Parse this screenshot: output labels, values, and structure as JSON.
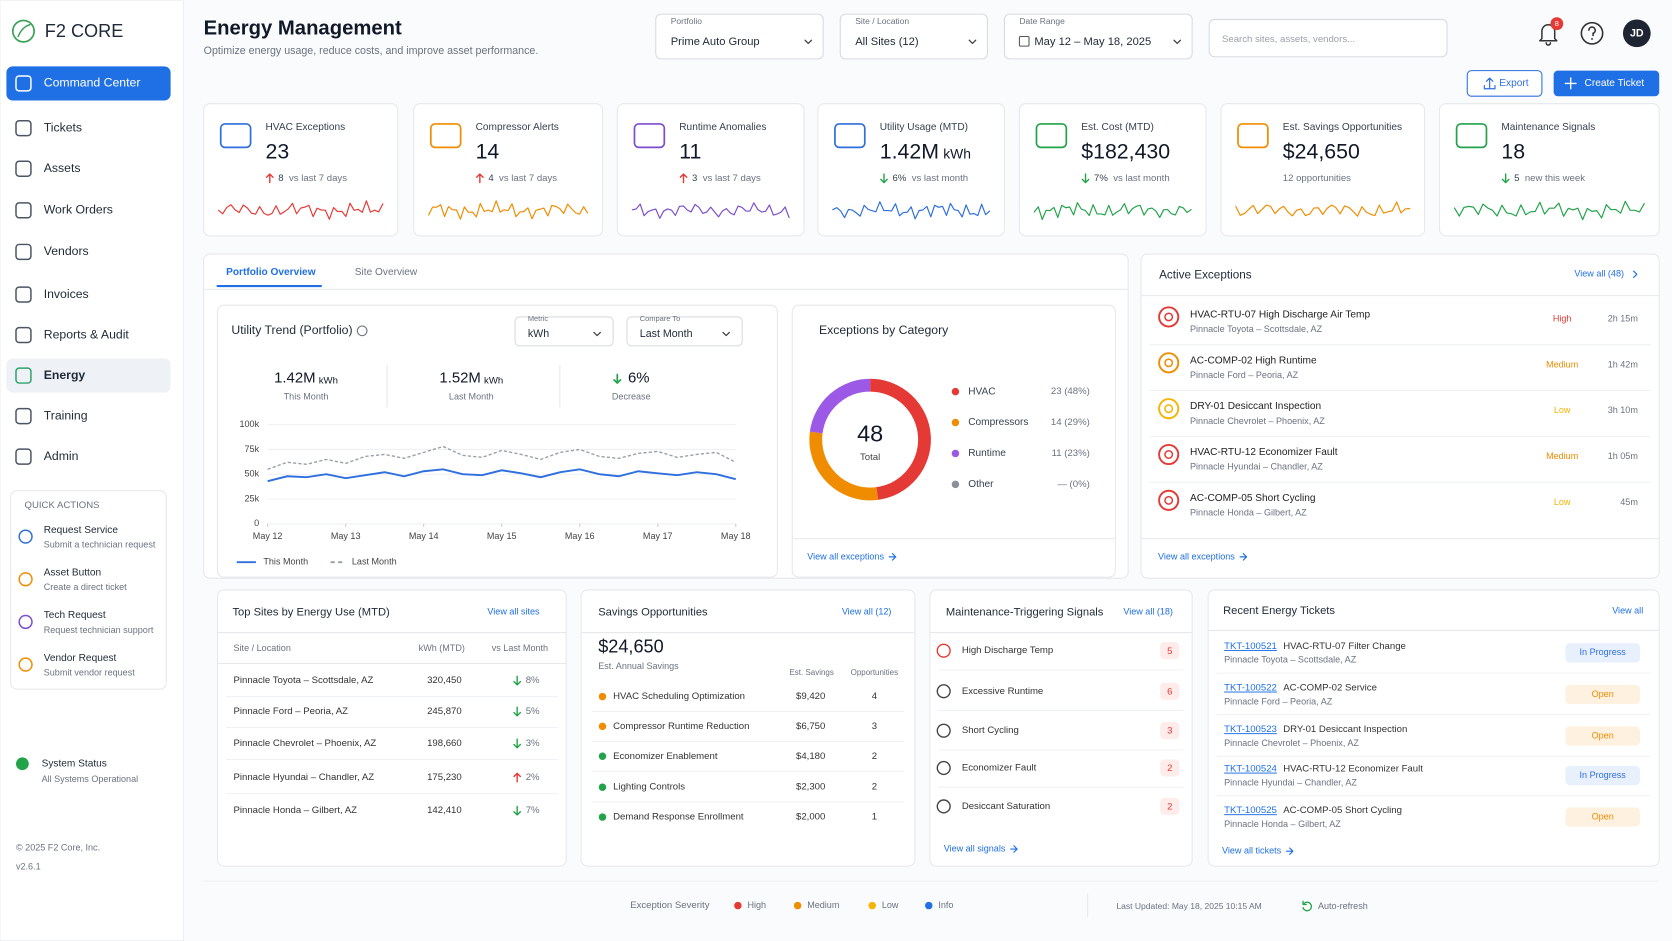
{
  "brand": {
    "name": "F2 CORE"
  },
  "nav": [
    {
      "label": "Command Center",
      "state": "active"
    },
    {
      "label": "Tickets"
    },
    {
      "label": "Assets"
    },
    {
      "label": "Work Orders"
    },
    {
      "label": "Vendors"
    },
    {
      "label": "Invoices"
    },
    {
      "label": "Reports & Audit"
    },
    {
      "label": "Energy",
      "state": "current"
    },
    {
      "label": "Training"
    },
    {
      "label": "Admin"
    }
  ],
  "quick_actions": {
    "title": "QUICK ACTIONS",
    "items": [
      {
        "title": "Request Service",
        "subtitle": "Submit a technician request",
        "color": "#2f6fde"
      },
      {
        "title": "Asset Button",
        "subtitle": "Create a direct ticket",
        "color": "#f08c00"
      },
      {
        "title": "Tech Request",
        "subtitle": "Request technician support",
        "color": "#7c4dcc"
      },
      {
        "title": "Vendor Request",
        "subtitle": "Submit vendor request",
        "color": "#f08c00"
      }
    ]
  },
  "system_status": {
    "title": "System Status",
    "subtitle": "All Systems Operational",
    "color": "#22a34a"
  },
  "footer": {
    "copyright": "© 2025 F2 Core, Inc.",
    "version": "v2.6.1"
  },
  "header": {
    "title": "Energy Management",
    "subtitle": "Optimize energy usage, reduce costs, and improve asset performance."
  },
  "filters": [
    {
      "label": "Portfolio",
      "value": "Prime Auto Group"
    },
    {
      "label": "Site / Location",
      "value": "All Sites (12)"
    },
    {
      "label": "Date Range",
      "value": "May 12 – May 18, 2025"
    }
  ],
  "search_placeholder": "Search sites, assets, vendors...",
  "notifications": 8,
  "avatar": "JD",
  "actions": [
    "Export",
    "Create Ticket"
  ],
  "kpis": [
    {
      "title": "HVAC Exceptions",
      "value": 23,
      "delta": 8,
      "delta_text": "vs last 7 days",
      "direction": "up",
      "icon_color": "#2f6fde",
      "color": "#e53935"
    },
    {
      "title": "Compressor Alerts",
      "value": 14,
      "delta": 4,
      "delta_text": "vs last 7 days",
      "direction": "up",
      "icon_color": "#f08c00",
      "color": "#f08c00"
    },
    {
      "title": "Runtime Anomalies",
      "value": 11,
      "delta": 3,
      "delta_text": "vs last 7 days",
      "direction": "up",
      "icon_color": "#7c4dcc",
      "color": "#7c4dcc"
    },
    {
      "title": "Utility Usage (MTD)",
      "value": "1.42M",
      "unit": "kWh",
      "delta": "6%",
      "delta_text": "vs last month",
      "direction": "down",
      "icon_color": "#2f6fde",
      "color": "#2f6fde"
    },
    {
      "title": "Est. Cost (MTD)",
      "value": "$182,430",
      "delta": "7%",
      "delta_text": "vs last month",
      "direction": "down",
      "icon_color": "#22a34a",
      "color": "#22a34a"
    },
    {
      "title": "Est. Savings Opportunities",
      "value": "$24,650",
      "note": "12 opportunities",
      "icon_color": "#f08c00",
      "color": "#f08c00"
    },
    {
      "title": "Maintenance Signals",
      "value": 18,
      "delta": 5,
      "delta_text": "new this week",
      "direction": "down",
      "icon_color": "#22a34a",
      "color": "#22a34a"
    }
  ],
  "tabs": [
    "Portfolio Overview",
    "Site Overview"
  ],
  "utility_trend": {
    "title": "Utility Trend (Portfolio)",
    "metric": {
      "label": "Metric",
      "value": "kWh"
    },
    "compare": {
      "label": "Compare To",
      "value": "Last Month"
    },
    "stats": [
      {
        "value": "1.42M",
        "unit": "kWh",
        "label": "This Month"
      },
      {
        "value": "1.52M",
        "unit": "kWh",
        "label": "Last Month"
      },
      {
        "value": "6%",
        "label": "Decrease",
        "direction": "down"
      }
    ],
    "chart": {
      "type": "line",
      "x": [
        0,
        0.25,
        0.5,
        0.75,
        1,
        1.25,
        1.5,
        1.75,
        2,
        2.25,
        2.5,
        2.75,
        3,
        3.25,
        3.5,
        3.75,
        4,
        4.25,
        4.5,
        4.75,
        5,
        5.25,
        5.5,
        5.75,
        6
      ],
      "xlim": [
        0,
        6
      ],
      "xticks": [
        {
          "value": 0,
          "label": "May 12"
        },
        {
          "value": 1,
          "label": "May 13"
        },
        {
          "value": 2,
          "label": "May 14"
        },
        {
          "value": 3,
          "label": "May 15"
        },
        {
          "value": 4,
          "label": "May 16"
        },
        {
          "value": 5,
          "label": "May 17"
        },
        {
          "value": 6,
          "label": "May 18"
        }
      ],
      "ylim": [
        0,
        100000
      ],
      "yticks": [
        0,
        {
          "value": 25000,
          "label": "25k"
        },
        {
          "value": 50000,
          "label": "50k"
        },
        {
          "value": 75000,
          "label": "75k"
        },
        {
          "value": 100000,
          "label": "100k"
        }
      ],
      "grid": true,
      "series": [
        {
          "name": "This Month",
          "color": "#2f6fde",
          "values": [
            43000,
            48000,
            47000,
            50000,
            46000,
            49000,
            52000,
            48000,
            53000,
            55000,
            50000,
            49000,
            54000,
            51000,
            47000,
            52000,
            55000,
            50000,
            48000,
            53000,
            51000,
            49000,
            52000,
            50000,
            45000
          ]
        },
        {
          "name": "Last Month",
          "color": "#9aa0aa",
          "dashed": true,
          "values": [
            55000,
            62000,
            60000,
            65000,
            61000,
            68000,
            70000,
            66000,
            72000,
            78000,
            69000,
            67000,
            74000,
            70000,
            65000,
            72000,
            75000,
            68000,
            66000,
            71000,
            73000,
            67000,
            70000,
            72000,
            62000
          ]
        }
      ]
    }
  },
  "exceptions_by_category": {
    "title": "Exceptions by Category",
    "chart": {
      "type": "pie",
      "total": 48,
      "total_label": "Total",
      "categories": [
        "HVAC",
        "Compressors",
        "Runtime",
        "Other"
      ],
      "values": [
        23,
        14,
        11,
        0
      ],
      "value_labels": [
        "23 (48%)",
        "14 (29%)",
        "11 (23%)",
        "— (0%)"
      ],
      "colors": [
        "#e53935",
        "#f08c00",
        "#9b59e6",
        "#8a8f98"
      ]
    },
    "link": "View all exceptions"
  },
  "active_exceptions": {
    "title": "Active Exceptions",
    "link": "View all (48)",
    "items": [
      {
        "title": "HVAC-RTU-07 High Discharge Air Temp",
        "location": "Pinnacle Toyota – Scottsdale, AZ",
        "severity": "High",
        "age": "2h 15m",
        "icon_color": "#e53935"
      },
      {
        "title": "AC-COMP-02 High Runtime",
        "location": "Pinnacle Ford – Peoria, AZ",
        "severity": "Medium",
        "age": "1h 42m",
        "icon_color": "#f08c00"
      },
      {
        "title": "DRY-01 Desiccant Inspection",
        "location": "Pinnacle Chevrolet – Phoenix, AZ",
        "severity": "Low",
        "age": "3h 10m",
        "icon_color": "#f5b400"
      },
      {
        "title": "HVAC-RTU-12 Economizer Fault",
        "location": "Pinnacle Hyundai – Chandler, AZ",
        "severity": "Medium",
        "age": "1h 05m",
        "icon_color": "#e53935"
      },
      {
        "title": "AC-COMP-05 Short Cycling",
        "location": "Pinnacle Honda – Gilbert, AZ",
        "severity": "Low",
        "age": "45m",
        "icon_color": "#e53935"
      }
    ],
    "footer_link": "View all exceptions"
  },
  "top_sites": {
    "title": "Top Sites by Energy Use (MTD)",
    "link": "View all sites",
    "columns": [
      "Site / Location",
      "kWh (MTD)",
      "vs Last Month"
    ],
    "rows": [
      {
        "site": "Pinnacle Toyota – Scottsdale, AZ",
        "kwh": "320,450",
        "change": "8%",
        "trend": "down"
      },
      {
        "site": "Pinnacle Ford – Peoria, AZ",
        "kwh": "245,870",
        "change": "5%",
        "trend": "down"
      },
      {
        "site": "Pinnacle Chevrolet – Phoenix, AZ",
        "kwh": "198,660",
        "change": "3%",
        "trend": "down"
      },
      {
        "site": "Pinnacle Hyundai – Chandler, AZ",
        "kwh": "175,230",
        "change": "2%",
        "trend": "up"
      },
      {
        "site": "Pinnacle Honda – Gilbert, AZ",
        "kwh": "142,410",
        "change": "7%",
        "trend": "down"
      }
    ]
  },
  "savings": {
    "title": "Savings Opportunities",
    "link": "View all (12)",
    "total": "$24,650",
    "total_label": "Est. Annual Savings",
    "columns": [
      "Est. Savings",
      "Opportunities"
    ],
    "rows": [
      {
        "name": "HVAC Scheduling Optimization",
        "savings": "$9,420",
        "count": 4,
        "color": "#f08c00"
      },
      {
        "name": "Compressor Runtime Reduction",
        "savings": "$6,750",
        "count": 3,
        "color": "#f08c00"
      },
      {
        "name": "Economizer Enablement",
        "savings": "$4,180",
        "count": 2,
        "color": "#22a34a"
      },
      {
        "name": "Lighting Controls",
        "savings": "$2,300",
        "count": 2,
        "color": "#22a34a"
      },
      {
        "name": "Demand Response Enrollment",
        "savings": "$2,000",
        "count": 1,
        "color": "#22a34a"
      }
    ]
  },
  "signals": {
    "title": "Maintenance-Triggering Signals",
    "link": "View all (18)",
    "items": [
      {
        "name": "High Discharge Temp",
        "count": 5
      },
      {
        "name": "Excessive Runtime",
        "count": 6
      },
      {
        "name": "Short Cycling",
        "count": 3
      },
      {
        "name": "Economizer Fault",
        "count": 2
      },
      {
        "name": "Desiccant Saturation",
        "count": 2
      }
    ],
    "footer_link": "View all signals"
  },
  "tickets": {
    "title": "Recent Energy Tickets",
    "link": "View all",
    "status_colors": {
      "In Progress": [
        "#e8f0fe",
        "#2f6fde"
      ],
      "Open": [
        "#fff1e0",
        "#f08c00"
      ]
    },
    "items": [
      {
        "id": "TKT-100521",
        "title": "HVAC-RTU-07 Filter Change",
        "location": "Pinnacle Toyota – Scottsdale, AZ",
        "status": "In Progress"
      },
      {
        "id": "TKT-100522",
        "title": "AC-COMP-02 Service",
        "location": "Pinnacle Ford – Peoria, AZ",
        "status": "Open"
      },
      {
        "id": "TKT-100523",
        "title": "DRY-01 Desiccant Inspection",
        "location": "Pinnacle Chevrolet – Phoenix, AZ",
        "status": "Open"
      },
      {
        "id": "TKT-100524",
        "title": "HVAC-RTU-12 Economizer Fault",
        "location": "Pinnacle Hyundai – Chandler, AZ",
        "status": "In Progress"
      },
      {
        "id": "TKT-100525",
        "title": "AC-COMP-05 Short Cycling",
        "location": "Pinnacle Honda – Gilbert, AZ",
        "status": "Open"
      }
    ],
    "footer_link": "View all tickets"
  },
  "legend": {
    "title": "Exception Severity",
    "items": [
      {
        "name": "High",
        "color": "#e53935"
      },
      {
        "name": "Medium",
        "color": "#f08c00"
      },
      {
        "name": "Low",
        "color": "#f5b400"
      },
      {
        "name": "Info",
        "color": "#1f6fe5"
      }
    ],
    "last_updated": "Last Updated: May 18, 2025 10:15 AM",
    "auto_refresh": "Auto-refresh"
  }
}
